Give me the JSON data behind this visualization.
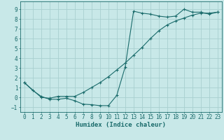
{
  "xlabel": "Humidex (Indice chaleur)",
  "ylabel": "",
  "bg_color": "#c8e8e8",
  "grid_color": "#a8d0d0",
  "line_color": "#1a6b6b",
  "xlim": [
    -0.5,
    23.5
  ],
  "ylim": [
    -1.5,
    9.8
  ],
  "xticks": [
    0,
    1,
    2,
    3,
    4,
    5,
    6,
    7,
    8,
    9,
    10,
    11,
    12,
    13,
    14,
    15,
    16,
    17,
    18,
    19,
    20,
    21,
    22,
    23
  ],
  "yticks": [
    -1,
    0,
    1,
    2,
    3,
    4,
    5,
    6,
    7,
    8,
    9
  ],
  "curve1_x": [
    0,
    1,
    2,
    3,
    4,
    5,
    6,
    7,
    8,
    9,
    10,
    11,
    12,
    13,
    14,
    15,
    16,
    17,
    18,
    19,
    20,
    21,
    22,
    23
  ],
  "curve1_y": [
    1.5,
    0.7,
    0.1,
    -0.2,
    -0.2,
    -0.1,
    -0.35,
    -0.7,
    -0.75,
    -0.85,
    -0.85,
    0.2,
    3.1,
    8.8,
    8.6,
    8.5,
    8.3,
    8.2,
    8.3,
    9.0,
    8.7,
    8.7,
    8.5,
    8.7
  ],
  "curve2_x": [
    0,
    2,
    3,
    4,
    5,
    6,
    7,
    8,
    9,
    10,
    11,
    12,
    13,
    14,
    15,
    16,
    17,
    18,
    19,
    20,
    21,
    22,
    23
  ],
  "curve2_y": [
    1.5,
    0.0,
    -0.1,
    0.1,
    0.1,
    0.1,
    0.5,
    1.0,
    1.5,
    2.1,
    2.8,
    3.5,
    4.3,
    5.1,
    6.0,
    6.8,
    7.4,
    7.8,
    8.1,
    8.4,
    8.6,
    8.6,
    8.7
  ],
  "xlabel_fontsize": 6.5,
  "tick_fontsize": 5.5,
  "marker_size": 3.5
}
